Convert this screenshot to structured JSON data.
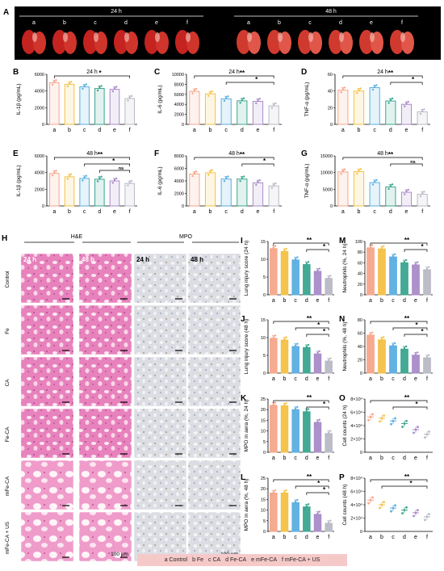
{
  "panel_a": {
    "letter": "A",
    "groups": [
      {
        "time": "24 h",
        "lungs": [
          "a",
          "b",
          "c",
          "d",
          "e",
          "f"
        ]
      },
      {
        "time": "48 h",
        "lungs": [
          "a",
          "b",
          "c",
          "d",
          "e",
          "f"
        ]
      }
    ]
  },
  "histology": {
    "letter": "H",
    "stain_labels": [
      "H&E",
      "MPO"
    ],
    "time_labels": [
      "24 h",
      "48 h",
      "24 h",
      "48 h"
    ],
    "rows": [
      "Control",
      "Fe",
      "CA",
      "Fe-CA",
      "mFe-CA",
      "mFe-CA + US"
    ],
    "scale_labels": [
      "100 μm",
      "100 μm"
    ]
  },
  "legend": {
    "items": [
      "a  Control",
      "b  Fe",
      "c  CA",
      "d  Fe-CA",
      "e  mFe-CA",
      "f  mFe-CA + US"
    ]
  },
  "colors": [
    "#f6a58a",
    "#f4c146",
    "#5aaee0",
    "#3aa58f",
    "#a88bc8",
    "#b9b9c6"
  ],
  "chart_data": [
    {
      "type": "bar",
      "letter": "B",
      "title": "24 h",
      "ylabel": "IL-1β (pg/mL)",
      "categories": [
        "a",
        "b",
        "c",
        "d",
        "e",
        "f"
      ],
      "values": [
        5000,
        4800,
        4500,
        4300,
        4200,
        3100
      ],
      "ylim": [
        0,
        6000
      ],
      "ticks": [
        0,
        2000,
        4000,
        6000
      ],
      "sig": [
        {
          "from": 1,
          "to": 5,
          "label": "*"
        }
      ]
    },
    {
      "type": "bar",
      "letter": "C",
      "title": "24 h",
      "ylabel": "IL-6 (pg/mL)",
      "categories": [
        "a",
        "b",
        "c",
        "d",
        "e",
        "f"
      ],
      "values": [
        6600,
        6100,
        5100,
        4700,
        4600,
        3700
      ],
      "ylim": [
        0,
        10000
      ],
      "ticks": [
        0,
        2000,
        4000,
        6000,
        8000,
        10000
      ],
      "sig": [
        {
          "from": 1,
          "to": 5,
          "label": "**"
        },
        {
          "from": 3,
          "to": 5,
          "label": "*"
        }
      ]
    },
    {
      "type": "bar",
      "letter": "D",
      "title": "24 h",
      "ylabel": "TNF-α (pg/mL)",
      "categories": [
        "a",
        "b",
        "c",
        "d",
        "e",
        "f"
      ],
      "values": [
        41,
        40,
        44,
        28,
        24,
        15
      ],
      "ylim": [
        0,
        60
      ],
      "ticks": [
        0,
        20,
        40,
        60
      ],
      "sig": [
        {
          "from": 1,
          "to": 5,
          "label": "**"
        },
        {
          "from": 4,
          "to": 5,
          "label": "*"
        }
      ]
    },
    {
      "type": "bar",
      "letter": "E",
      "title": "48 h",
      "ylabel": "IL-1β (pg/mL)",
      "categories": [
        "a",
        "b",
        "c",
        "d",
        "e",
        "f"
      ],
      "values": [
        3900,
        3500,
        3300,
        3200,
        3000,
        2700
      ],
      "ylim": [
        0,
        6000
      ],
      "ticks": [
        0,
        2000,
        4000,
        6000
      ],
      "sig": [
        {
          "from": 1,
          "to": 5,
          "label": "**"
        },
        {
          "from": 3,
          "to": 5,
          "label": "*"
        },
        {
          "from": 4,
          "to": 5,
          "label": "ns"
        }
      ]
    },
    {
      "type": "bar",
      "letter": "F",
      "title": "48 h",
      "ylabel": "IL-6 (pg/mL)",
      "categories": [
        "a",
        "b",
        "c",
        "d",
        "e",
        "f"
      ],
      "values": [
        5100,
        5300,
        4300,
        4300,
        3700,
        3200
      ],
      "ylim": [
        0,
        8000
      ],
      "ticks": [
        0,
        2000,
        4000,
        6000,
        8000
      ],
      "sig": [
        {
          "from": 1,
          "to": 5,
          "label": "**"
        },
        {
          "from": 4,
          "to": 5,
          "label": "*"
        }
      ]
    },
    {
      "type": "bar",
      "letter": "G",
      "title": "48 h",
      "ylabel": "TNF-α (pg/mL)",
      "categories": [
        "a",
        "b",
        "c",
        "d",
        "e",
        "f"
      ],
      "values": [
        10200,
        10300,
        7000,
        5700,
        4100,
        3500
      ],
      "ylim": [
        0,
        15000
      ],
      "ticks": [
        0,
        5000,
        10000,
        15000
      ],
      "sig": [
        {
          "from": 1,
          "to": 5,
          "label": "**"
        },
        {
          "from": 4,
          "to": 5,
          "label": "ns"
        }
      ]
    },
    {
      "type": "bar",
      "letter": "I",
      "title": "",
      "ylabel": "Lung injury score (24 h)",
      "categories": [
        "a",
        "b",
        "c",
        "d",
        "e",
        "f"
      ],
      "values": [
        13,
        12.2,
        9.8,
        8.5,
        6.6,
        4.6
      ],
      "ylim": [
        0,
        15
      ],
      "ticks": [
        0,
        5,
        10,
        15
      ],
      "sig": [
        {
          "from": 1,
          "to": 5,
          "label": "**"
        },
        {
          "from": 4,
          "to": 5,
          "label": "*"
        }
      ]
    },
    {
      "type": "bar",
      "letter": "J",
      "title": "",
      "ylabel": "Lung injury score (48 h)",
      "categories": [
        "a",
        "b",
        "c",
        "d",
        "e",
        "f"
      ],
      "values": [
        9.8,
        9.3,
        7.5,
        7.2,
        5.4,
        3.4
      ],
      "ylim": [
        0,
        15
      ],
      "ticks": [
        0,
        5,
        10,
        15
      ],
      "sig": [
        {
          "from": 1,
          "to": 5,
          "label": "**"
        },
        {
          "from": 3,
          "to": 5,
          "label": "*"
        },
        {
          "from": 4,
          "to": 5,
          "label": "*"
        }
      ]
    },
    {
      "type": "bar",
      "letter": "K",
      "title": "",
      "ylabel": "MPO in aera  (%, 24 h)",
      "categories": [
        "a",
        "b",
        "c",
        "d",
        "e",
        "f"
      ],
      "values": [
        22,
        21.8,
        20,
        19,
        14,
        8.8
      ],
      "ylim": [
        0,
        25
      ],
      "ticks": [
        0,
        5,
        10,
        15,
        20,
        25
      ],
      "sig": [
        {
          "from": 1,
          "to": 5,
          "label": "**"
        },
        {
          "from": 4,
          "to": 5,
          "label": "*"
        }
      ]
    },
    {
      "type": "bar",
      "letter": "L",
      "title": "",
      "ylabel": "MPO in aera  (%, 48 h)",
      "categories": [
        "a",
        "b",
        "c",
        "d",
        "e",
        "f"
      ],
      "values": [
        18,
        18,
        13.5,
        11.5,
        8,
        3.8
      ],
      "ylim": [
        0,
        25
      ],
      "ticks": [
        0,
        5,
        10,
        15,
        20,
        25
      ],
      "sig": [
        {
          "from": 1,
          "to": 5,
          "label": "**"
        },
        {
          "from": 3,
          "to": 5,
          "label": "*"
        },
        {
          "from": 4,
          "to": 5,
          "label": "*"
        }
      ]
    },
    {
      "type": "bar",
      "letter": "M",
      "title": "",
      "ylabel": "Neutrophils (%, 24 h)",
      "categories": [
        "a",
        "b",
        "c",
        "d",
        "e",
        "f"
      ],
      "values": [
        88,
        86,
        71,
        60,
        56,
        47
      ],
      "ylim": [
        0,
        100
      ],
      "ticks": [
        0,
        20,
        40,
        60,
        80,
        100
      ],
      "sig": [
        {
          "from": 1,
          "to": 5,
          "label": "**"
        },
        {
          "from": 4,
          "to": 5,
          "label": "*"
        }
      ]
    },
    {
      "type": "bar",
      "letter": "N",
      "title": "",
      "ylabel": "Neutrophils (%, 48 h)",
      "categories": [
        "a",
        "b",
        "c",
        "d",
        "e",
        "f"
      ],
      "values": [
        57,
        50,
        41,
        36,
        27,
        23
      ],
      "ylim": [
        0,
        80
      ],
      "ticks": [
        0,
        20,
        40,
        60,
        80
      ],
      "sig": [
        {
          "from": 1,
          "to": 5,
          "label": "**"
        },
        {
          "from": 3,
          "to": 5,
          "label": "*"
        },
        {
          "from": 4,
          "to": 5,
          "label": "*"
        }
      ]
    },
    {
      "type": "scatter",
      "letter": "O",
      "title": "",
      "ylabel": "Cell counts (24 h)",
      "categories": [
        "a",
        "b",
        "c",
        "d",
        "e",
        "f"
      ],
      "values": [
        53000,
        51000,
        47000,
        43000,
        34000,
        27000
      ],
      "ylim": [
        0,
        80000
      ],
      "ticks": [
        0,
        20000,
        40000,
        60000,
        80000
      ],
      "tick_labels": [
        "0",
        "2×10⁴",
        "4×10⁴",
        "6×10⁴",
        "8×10⁴"
      ],
      "sig": [
        {
          "from": 1,
          "to": 5,
          "label": "**"
        },
        {
          "from": 3,
          "to": 5,
          "label": "*"
        }
      ]
    },
    {
      "type": "scatter",
      "letter": "P",
      "title": "",
      "ylabel": "Cell counts (48 h)",
      "categories": [
        "a",
        "b",
        "c",
        "d",
        "e",
        "f"
      ],
      "values": [
        47000,
        40000,
        35000,
        32000,
        28000,
        22000
      ],
      "ylim": [
        0,
        80000
      ],
      "ticks": [
        0,
        20000,
        40000,
        60000,
        80000
      ],
      "tick_labels": [
        "0",
        "2×10⁴",
        "4×10⁴",
        "6×10⁴",
        "8×10⁴"
      ],
      "sig": [
        {
          "from": 1,
          "to": 5,
          "label": "**"
        },
        {
          "from": 2,
          "to": 5,
          "label": "*"
        }
      ]
    }
  ]
}
